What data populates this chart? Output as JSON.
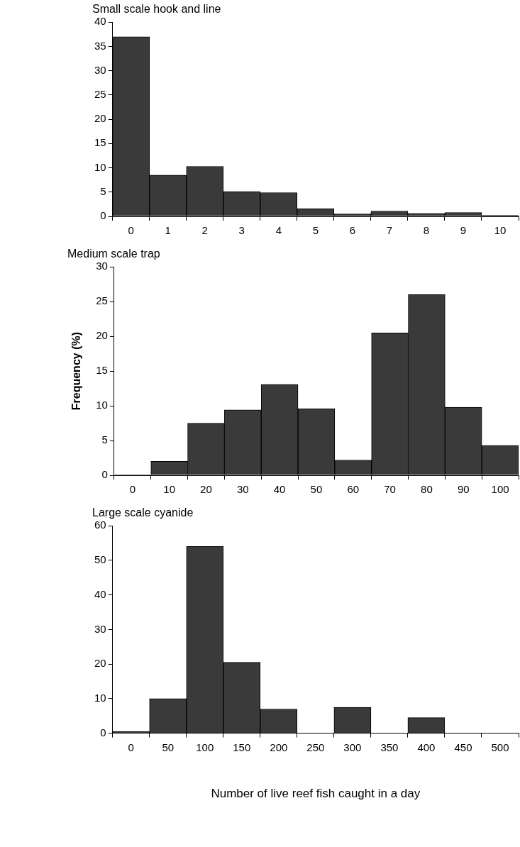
{
  "chart_data": [
    {
      "type": "bar",
      "title": "Small scale hook and line",
      "categories": [
        "0",
        "1",
        "2",
        "3",
        "4",
        "5",
        "6",
        "7",
        "8",
        "9",
        "10"
      ],
      "values": [
        37,
        8.5,
        10.3,
        5.1,
        4.9,
        1.6,
        0.5,
        1.1,
        0.6,
        0.8,
        0.2
      ],
      "color": "#3a3a3a",
      "ylim": [
        0,
        40
      ],
      "yticks": [
        0,
        5,
        10,
        15,
        20,
        25,
        30,
        35,
        40
      ]
    },
    {
      "type": "bar",
      "title": "Medium scale trap",
      "ylabel": "Frequency (%)",
      "categories": [
        "0",
        "10",
        "20",
        "30",
        "40",
        "50",
        "60",
        "70",
        "80",
        "90",
        "100"
      ],
      "values": [
        0.1,
        2,
        7.5,
        9.4,
        13.1,
        9.6,
        2.2,
        20.5,
        26,
        9.8,
        4.3
      ],
      "color": "#3a3a3a",
      "ylim": [
        0,
        30
      ],
      "yticks": [
        0,
        5,
        10,
        15,
        20,
        25,
        30
      ]
    },
    {
      "type": "bar",
      "title": "Large scale cyanide",
      "xlabel": "Number of live reef fish caught in a day",
      "categories": [
        "0",
        "50",
        "100",
        "150",
        "200",
        "250",
        "300",
        "350",
        "400",
        "450",
        "500"
      ],
      "values": [
        0.5,
        10,
        54,
        20.5,
        7,
        0,
        7.5,
        0,
        4.5,
        0,
        0
      ],
      "color": "#3a3a3a",
      "ylim": [
        0,
        60
      ],
      "yticks": [
        0,
        10,
        20,
        30,
        40,
        50,
        60
      ]
    }
  ]
}
